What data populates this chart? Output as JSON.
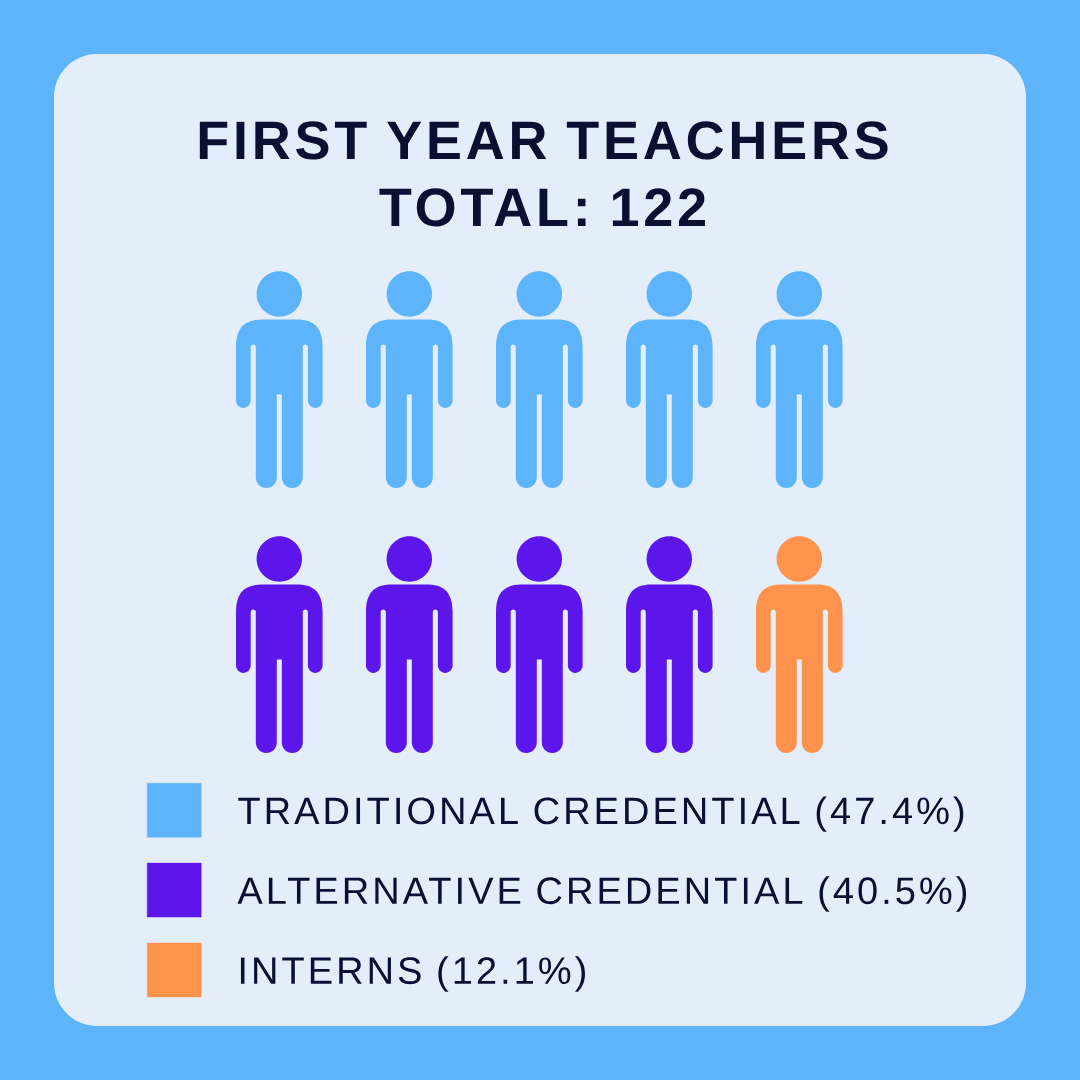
{
  "chart_data": {
    "type": "other",
    "title": "FIRST YEAR TEACHERS",
    "subtitle": "TOTAL: 122",
    "categories": [
      "TRADITIONAL CREDENTIAL",
      "ALTERNATIVE CREDENTIAL",
      "INTERNS"
    ],
    "values": [
      47.4,
      40.5,
      12.1
    ],
    "value_labels": [
      "(47.4%)",
      "(40.5%)",
      "(12.1%)"
    ],
    "colors": [
      "#5eb4fa",
      "#5c16ec",
      "#ff924c"
    ]
  }
}
